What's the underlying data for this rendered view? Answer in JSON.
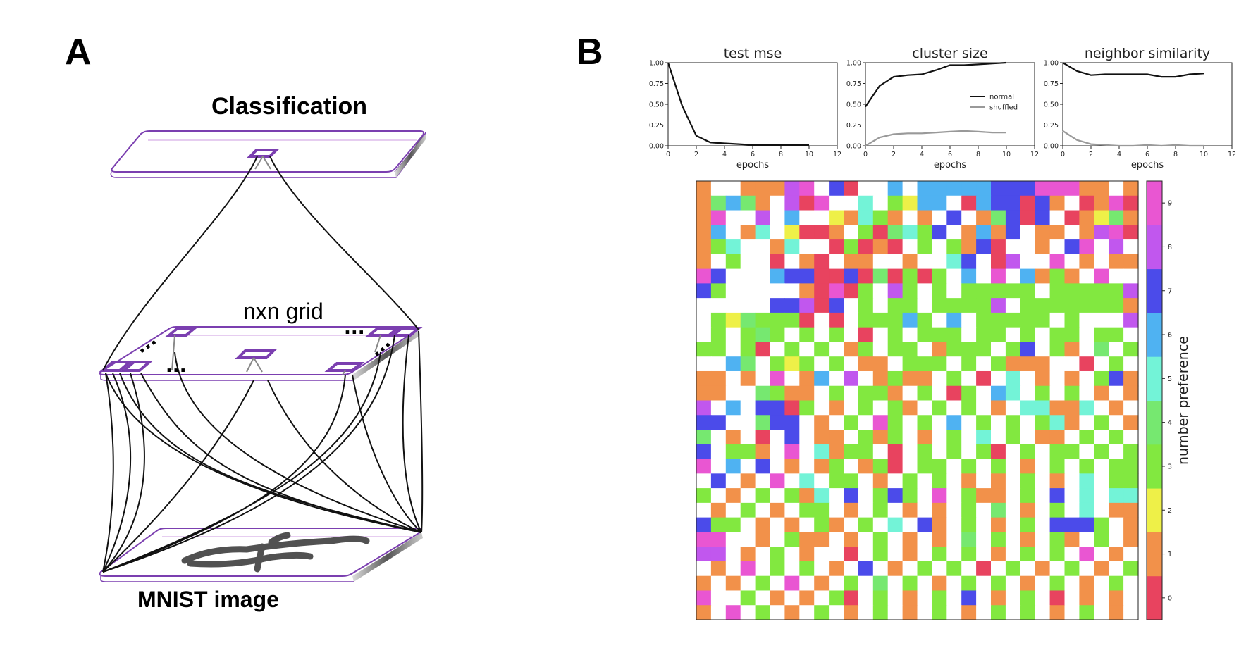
{
  "panels": {
    "a": "A",
    "b": "B"
  },
  "diagram": {
    "top_layer_label": "Classification",
    "middle_layer_label": "nxn grid",
    "bottom_layer_label": "MNIST image",
    "ellipsis": "..."
  },
  "colors": {
    "layer_outline": "#7b3fb0",
    "layer_fill_light": "#e6cdf0",
    "line_dark": "#111111",
    "line_gray": "#888888"
  },
  "chart_data": [
    {
      "type": "line",
      "title": "test mse",
      "xlabel": "epochs",
      "xlim": [
        0,
        12
      ],
      "ylim": [
        0,
        1
      ],
      "xticks": [
        "0",
        "2",
        "4",
        "6",
        "8",
        "10",
        "12"
      ],
      "yticks": [
        "0.00",
        "0.25",
        "0.50",
        "0.75",
        "1.00"
      ],
      "series": [
        {
          "x": [
            0,
            1,
            2,
            3,
            4,
            5,
            6,
            7,
            8,
            9,
            10
          ],
          "values": [
            1.0,
            0.48,
            0.12,
            0.04,
            0.03,
            0.02,
            0.01,
            0.01,
            0.01,
            0.01,
            0.01
          ],
          "color": "#111111"
        }
      ]
    },
    {
      "type": "line",
      "title": "cluster size",
      "xlabel": "epochs",
      "xlim": [
        0,
        12
      ],
      "ylim": [
        0,
        1
      ],
      "xticks": [
        "0",
        "2",
        "4",
        "6",
        "8",
        "10",
        "12"
      ],
      "yticks": [
        "0.00",
        "0.25",
        "0.50",
        "0.75",
        "1.00"
      ],
      "legend": "center-right",
      "series": [
        {
          "name": "normal",
          "x": [
            0,
            1,
            2,
            3,
            4,
            5,
            6,
            7,
            8,
            9,
            10
          ],
          "values": [
            0.47,
            0.72,
            0.83,
            0.85,
            0.86,
            0.91,
            0.97,
            0.97,
            0.98,
            0.99,
            1.0
          ],
          "color": "#111111"
        },
        {
          "name": "shuffled",
          "x": [
            0,
            1,
            2,
            3,
            4,
            5,
            6,
            7,
            8,
            9,
            10
          ],
          "values": [
            0.0,
            0.1,
            0.14,
            0.15,
            0.15,
            0.16,
            0.17,
            0.18,
            0.17,
            0.16,
            0.16
          ],
          "color": "#999999"
        }
      ]
    },
    {
      "type": "line",
      "title": "neighbor similarity",
      "xlabel": "epochs",
      "xlim": [
        0,
        12
      ],
      "ylim": [
        0,
        1
      ],
      "xticks": [
        "0",
        "2",
        "4",
        "6",
        "8",
        "10",
        "12"
      ],
      "yticks": [
        "0.00",
        "0.25",
        "0.50",
        "0.75",
        "1.00"
      ],
      "series": [
        {
          "x": [
            0,
            1,
            2,
            3,
            4,
            5,
            6,
            7,
            8,
            9,
            10
          ],
          "values": [
            1.0,
            0.9,
            0.85,
            0.86,
            0.86,
            0.86,
            0.86,
            0.83,
            0.83,
            0.86,
            0.87
          ],
          "color": "#111111"
        },
        {
          "x": [
            0,
            1,
            2,
            3,
            4,
            5,
            6,
            7,
            8,
            9,
            10
          ],
          "values": [
            0.18,
            0.07,
            0.02,
            0.01,
            0.0,
            0.0,
            0.01,
            0.0,
            0.01,
            0.0,
            0.0
          ],
          "color": "#999999"
        }
      ]
    },
    {
      "type": "heatmap",
      "rows": 30,
      "cols": 30,
      "colorbar_label": "number preference",
      "colorbar_ticks": [
        "0",
        "1",
        "2",
        "3",
        "4",
        "5",
        "6",
        "7",
        "8",
        "9"
      ],
      "palette": [
        "#e8435f",
        "#f2914a",
        "#eef048",
        "#82e840",
        "#76e870",
        "#73f3d7",
        "#4fb2f2",
        "#4b4bea",
        "#c157ee",
        "#e956d2"
      ],
      "empty_color": "#ffffff",
      "cells": [
        "1bb11189a70ae6a6666677799911b1",
        "14641b809bb5b3266b0677071b0190",
        "19bb8b6bb21531b1b7b14707b01241",
        "16b15b2001b304537b1617b11b1890",
        "135bb15bb03010b3b3170bb1b79b8b",
        "1b3bb0b10b11be1bb57b08bb9b1b11",
        "97bbb677007040303b6b9b6131b9bb",
        "73bbbbb10903b83b3b33333b333338",
        "bbbbb77807b3b33b33338b33333331",
        "b3243330b0b33363b6b33333b3bbb8",
        "b3b343b3b3b0b3b333b33b3b33b33b",
        "33b30b3b3b13b33b1333b37b31b4b3",
        "bb64b323b3b11b333b3b3111bb0b3b",
        "11b1b9b16b8b1311b3b0b5b1b1b371",
        "11bb4311b3b331b3b03b65b3b3b1b1",
        "8b6b7703b1b3b31b3b3b1b55115b1b",
        "77bb477b1b3b93b3b6b3b3b351b3b1",
        "4b1b0b7b11b313b1b3b5b3b11b3b3b",
        "7b331b9b5133b0b3b3b30b3b33b3b3",
        "9b6b7b1b13b130b33b3b3b1b3b3b33",
        "b7b1b9b5b33b1b3b3b1b1b3b1b5b33",
        "3b1b3b315b7b373b9b311b3b7b5b55",
        "b1b3b1b33b1b3b1b1b3b4b1b3b5b11",
        "733b1b1b31b3b5b71b3b1b3b7773b1",
        "99bb1b311b1b3b1b1b4b3b1b31b3b1",
        "88b1b3b1bb0b3b1b3b3b1b3b3b9b1b",
        "b1b9b3b3b1b7b1b3b3b0b3b1b3b1b3",
        "1b1b3b9b1b3b4b3b1b3b3b1b3b1b3b",
        "9bb3b1b1b30b3b1b3b7b1b3b0b1b1b",
        "1b9b3b1b3b1b3b1b3b1b3b3b1b3b1b"
      ]
    }
  ]
}
